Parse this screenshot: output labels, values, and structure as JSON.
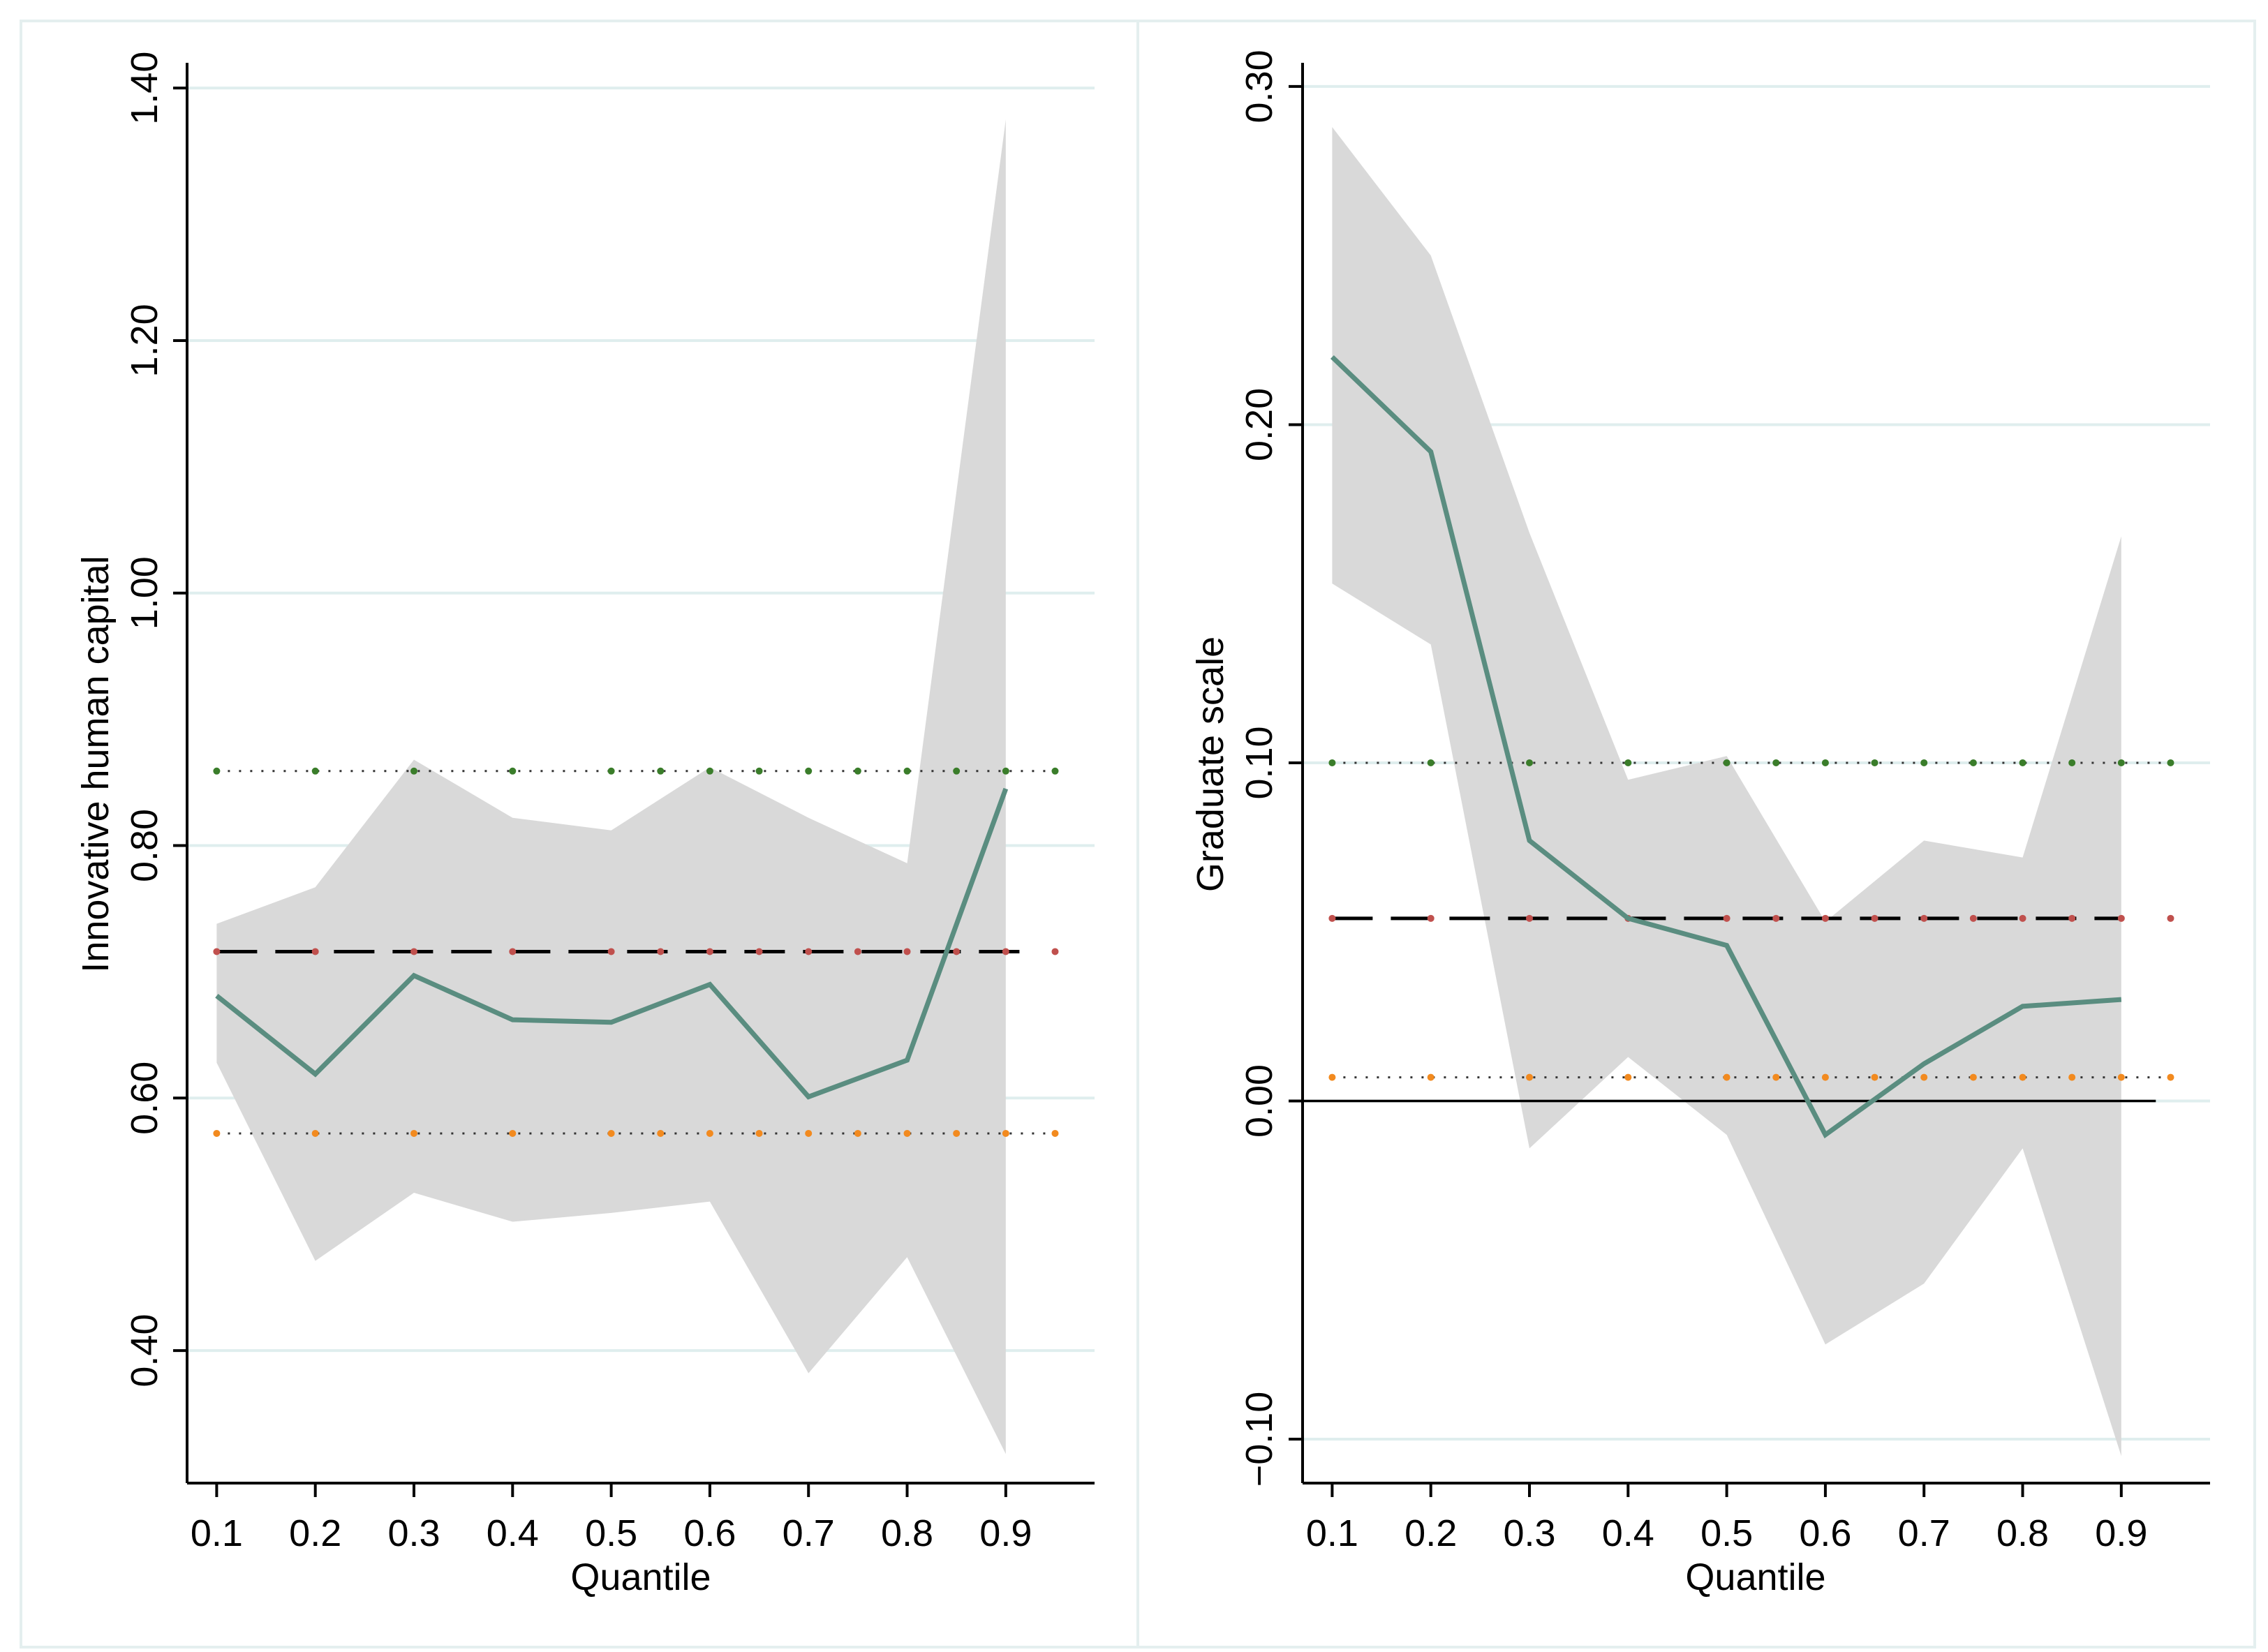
{
  "colors": {
    "background": "#ffffff",
    "panel_border": "#e4efef",
    "gridline": "#dfeeee",
    "ci_band": "#d9d9d9",
    "estimate_line": "#5a8d80",
    "ols_line": "#000000",
    "ols_dot": "#c0504d",
    "upper_dot": "#3a7d2a",
    "lower_dot": "#f28a1f",
    "zero_line": "#000000"
  },
  "chart_data": [
    {
      "type": "area",
      "title": "",
      "xlabel": "Quantile",
      "ylabel": "Innovative human capital",
      "xlim": [
        0.07,
        0.99
      ],
      "ylim": [
        0.295,
        1.42
      ],
      "x_ticks": [
        0.1,
        0.2,
        0.3,
        0.4,
        0.5,
        0.6,
        0.7,
        0.8,
        0.9
      ],
      "x_tick_labels": [
        "0.1",
        "0.2",
        "0.3",
        "0.4",
        "0.5",
        "0.6",
        "0.7",
        "0.8",
        "0.9"
      ],
      "y_ticks": [
        0.4,
        0.6,
        0.8,
        1.0,
        1.2,
        1.4
      ],
      "y_tick_labels": [
        "0.40",
        "0.60",
        "0.80",
        "1.00",
        "1.20",
        "1.40"
      ],
      "grid": true,
      "zero_line": false,
      "series": [
        {
          "name": "Quantile estimate",
          "x": [
            0.1,
            0.2,
            0.3,
            0.4,
            0.5,
            0.6,
            0.7,
            0.8,
            0.9
          ],
          "values": [
            0.681,
            0.619,
            0.697,
            0.662,
            0.66,
            0.69,
            0.601,
            0.63,
            0.845
          ]
        },
        {
          "name": "CI upper",
          "x": [
            0.1,
            0.2,
            0.3,
            0.4,
            0.5,
            0.6,
            0.7,
            0.8,
            0.9
          ],
          "values": [
            0.738,
            0.767,
            0.868,
            0.822,
            0.812,
            0.862,
            0.822,
            0.786,
            1.375
          ]
        },
        {
          "name": "CI lower",
          "x": [
            0.1,
            0.2,
            0.3,
            0.4,
            0.5,
            0.6,
            0.7,
            0.8,
            0.9
          ],
          "values": [
            0.628,
            0.471,
            0.525,
            0.502,
            0.509,
            0.518,
            0.382,
            0.474,
            0.318
          ]
        },
        {
          "name": "OLS estimate",
          "x_range": [
            0.1,
            0.93
          ],
          "value": 0.716
        },
        {
          "name": "OLS upper",
          "x_range": [
            0.1,
            0.95
          ],
          "value": 0.859
        },
        {
          "name": "OLS lower",
          "x_range": [
            0.1,
            0.95
          ],
          "value": 0.572
        }
      ],
      "reference_dot_x": [
        0.1,
        0.2,
        0.3,
        0.4,
        0.5,
        0.55,
        0.6,
        0.65,
        0.7,
        0.75,
        0.8,
        0.85,
        0.9,
        0.95
      ]
    },
    {
      "type": "area",
      "title": "",
      "xlabel": "Quantile",
      "ylabel": "Graduate scale",
      "xlim": [
        0.07,
        0.99
      ],
      "ylim": [
        -0.113,
        0.307
      ],
      "x_ticks": [
        0.1,
        0.2,
        0.3,
        0.4,
        0.5,
        0.6,
        0.7,
        0.8,
        0.9
      ],
      "x_tick_labels": [
        "0.1",
        "0.2",
        "0.3",
        "0.4",
        "0.5",
        "0.6",
        "0.7",
        "0.8",
        "0.9"
      ],
      "y_ticks": [
        -0.1,
        0.0,
        0.1,
        0.2,
        0.3
      ],
      "y_tick_labels": [
        "−0.10",
        "0.00",
        "0.10",
        "0.20",
        "0.30"
      ],
      "grid": true,
      "zero_line": true,
      "series": [
        {
          "name": "Quantile estimate",
          "x": [
            0.1,
            0.2,
            0.3,
            0.4,
            0.5,
            0.6,
            0.7,
            0.8,
            0.9
          ],
          "values": [
            0.22,
            0.192,
            0.077,
            0.054,
            0.046,
            -0.01,
            0.011,
            0.028,
            0.03
          ]
        },
        {
          "name": "CI upper",
          "x": [
            0.1,
            0.2,
            0.3,
            0.4,
            0.5,
            0.6,
            0.7,
            0.8,
            0.9
          ],
          "values": [
            0.288,
            0.25,
            0.168,
            0.095,
            0.102,
            0.053,
            0.077,
            0.072,
            0.167
          ]
        },
        {
          "name": "CI lower",
          "x": [
            0.1,
            0.2,
            0.3,
            0.4,
            0.5,
            0.6,
            0.7,
            0.8,
            0.9
          ],
          "values": [
            0.153,
            0.135,
            -0.014,
            0.013,
            -0.01,
            -0.072,
            -0.054,
            -0.014,
            -0.105
          ]
        },
        {
          "name": "OLS estimate",
          "x_range": [
            0.1,
            0.9
          ],
          "value": 0.054
        },
        {
          "name": "OLS upper",
          "x_range": [
            0.1,
            0.95
          ],
          "value": 0.1
        },
        {
          "name": "OLS lower",
          "x_range": [
            0.1,
            0.95
          ],
          "value": 0.007
        }
      ],
      "reference_dot_x": [
        0.1,
        0.2,
        0.3,
        0.4,
        0.5,
        0.55,
        0.6,
        0.65,
        0.7,
        0.75,
        0.8,
        0.85,
        0.9,
        0.95
      ]
    }
  ]
}
